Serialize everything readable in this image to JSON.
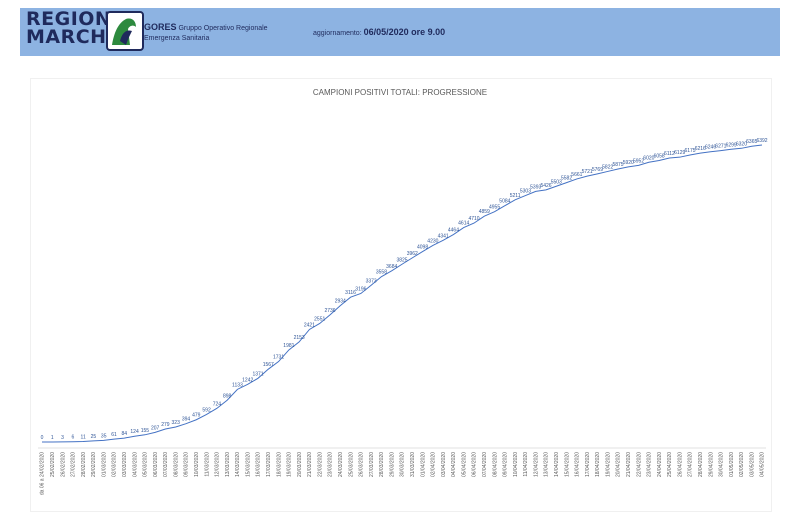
{
  "header": {
    "logo_line1": "REGIONE",
    "logo_line2": "MARCHE",
    "org_name": "GORES",
    "org_desc1": "Gruppo Operativo Regionale",
    "org_desc2": "Emergenza Sanitaria",
    "update_label": "aggiornamento:",
    "update_value": "06/05/2020 ore 9.00",
    "background_color": "#8db3e2"
  },
  "chart_data": {
    "type": "line",
    "title": "CAMPIONI POSITIVI TOTALI: PROGRESSIONE",
    "xlabel": "",
    "ylabel": "",
    "grid": false,
    "legend": "none",
    "color": "#4472c4",
    "categories": [
      "da 06 a 24/02/2020",
      "25/02/2020",
      "26/02/2020",
      "27/02/2020",
      "28/02/2020",
      "29/02/2020",
      "01/03/2020",
      "02/03/2020",
      "03/03/2020",
      "04/03/2020",
      "05/03/2020",
      "06/03/2020",
      "07/03/2020",
      "08/03/2020",
      "09/03/2020",
      "10/03/2020",
      "11/03/2020",
      "12/03/2020",
      "13/03/2020",
      "14/03/2020",
      "15/03/2020",
      "16/03/2020",
      "17/03/2020",
      "18/03/2020",
      "19/03/2020",
      "20/03/2020",
      "21/03/2020",
      "22/03/2020",
      "23/03/2020",
      "24/03/2020",
      "25/03/2020",
      "26/03/2020",
      "27/03/2020",
      "28/03/2020",
      "29/03/2020",
      "30/03/2020",
      "31/03/2020",
      "01/04/2020",
      "02/04/2020",
      "03/04/2020",
      "04/04/2020",
      "05/04/2020",
      "06/04/2020",
      "07/04/2020",
      "08/04/2020",
      "09/04/2020",
      "10/04/2020",
      "11/04/2020",
      "12/04/2020",
      "13/04/2020",
      "14/04/2020",
      "15/04/2020",
      "16/04/2020",
      "17/04/2020",
      "18/04/2020",
      "19/04/2020",
      "20/04/2020",
      "21/04/2020",
      "22/04/2020",
      "23/04/2020",
      "24/04/2020",
      "25/04/2020",
      "26/04/2020",
      "27/04/2020",
      "28/04/2020",
      "29/04/2020",
      "30/04/2020",
      "01/05/2020",
      "02/05/2020",
      "03/05/2020",
      "04/05/2020"
    ],
    "values": [
      0,
      1,
      3,
      6,
      11,
      25,
      35,
      61,
      84,
      124,
      155,
      207,
      279,
      323,
      394,
      479,
      592,
      724,
      898,
      1133,
      1242,
      1371,
      1567,
      1731,
      1981,
      2153,
      2421,
      2551,
      2736,
      2934,
      3116,
      3196,
      3373,
      3558,
      3684,
      3825,
      3962,
      4098,
      4230,
      4341,
      4464,
      4614,
      4710,
      4859,
      4955,
      5084,
      5211,
      5303,
      5393,
      5426,
      5503,
      5582,
      5661,
      5721,
      5769,
      5822,
      5875,
      5920,
      5952,
      6020,
      6058,
      6112,
      6129,
      6175,
      6216,
      6246,
      6271,
      6299,
      6320,
      6365,
      6392
    ]
  }
}
